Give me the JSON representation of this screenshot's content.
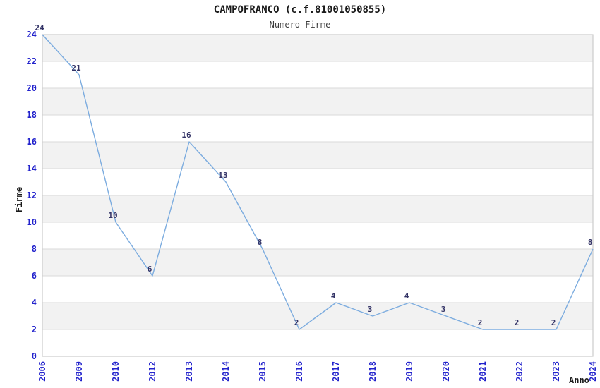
{
  "title": "CAMPOFRANCO (c.f.81001050855)",
  "subtitle": "Numero Firme",
  "chart_data": {
    "type": "line",
    "title": "CAMPOFRANCO (c.f.81001050855)",
    "subtitle": "Numero Firme",
    "xlabel": "Anno",
    "ylabel": "Firme",
    "categories": [
      "2006",
      "2009",
      "2010",
      "2012",
      "2013",
      "2014",
      "2015",
      "2016",
      "2017",
      "2018",
      "2019",
      "2020",
      "2021",
      "2022",
      "2023",
      "2024"
    ],
    "values": [
      24,
      21,
      10,
      6,
      16,
      13,
      8,
      2,
      4,
      3,
      4,
      3,
      2,
      2,
      2,
      8
    ],
    "ylim": [
      0,
      24
    ],
    "ytick_step": 2,
    "grid": true,
    "point_labels": true,
    "legend": "none",
    "colors": {
      "line": "#7cacdf",
      "tick_label": "#2222cc",
      "point_label": "#333366",
      "band": "#f2f2f2",
      "gridline": "#d9d9d9",
      "plot_border": "#cccccc",
      "title_text": "#1a1a1a",
      "subtitle_text": "#3c3c3c"
    }
  }
}
